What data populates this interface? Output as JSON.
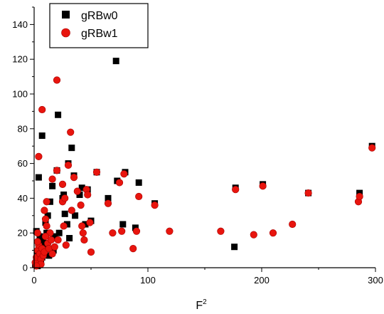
{
  "chart_data": {
    "type": "scatter",
    "title": "",
    "xlabel": "F",
    "xlabel_superscript": "2",
    "ylabel": "",
    "xlim": [
      0,
      300
    ],
    "ylim": [
      0,
      150
    ],
    "xticks": [
      "0",
      "100",
      "200",
      "300"
    ],
    "yticks": [
      "0",
      "20",
      "40",
      "60",
      "80",
      "100",
      "120",
      "140"
    ],
    "grid": false,
    "legend": "top-left",
    "series": [
      {
        "name": "gRBw0",
        "marker": "square",
        "color": "#000000",
        "points": [
          [
            2,
            21
          ],
          [
            4,
            52
          ],
          [
            7,
            76
          ],
          [
            16,
            47
          ],
          [
            20,
            56
          ],
          [
            21,
            88
          ],
          [
            26,
            42
          ],
          [
            30,
            60
          ],
          [
            33,
            69
          ],
          [
            35,
            53
          ],
          [
            42,
            46
          ],
          [
            47,
            45
          ],
          [
            55,
            55
          ],
          [
            65,
            40
          ],
          [
            72,
            119
          ],
          [
            73,
            50
          ],
          [
            80,
            55
          ],
          [
            92,
            49
          ],
          [
            106,
            37
          ],
          [
            177,
            46
          ],
          [
            201,
            48
          ],
          [
            241,
            43
          ],
          [
            286,
            43
          ],
          [
            297,
            70
          ],
          [
            176,
            12
          ],
          [
            89,
            23
          ],
          [
            5,
            10
          ],
          [
            8,
            15
          ],
          [
            10,
            26
          ],
          [
            12,
            30
          ],
          [
            14,
            38
          ],
          [
            18,
            18
          ],
          [
            22,
            20
          ],
          [
            25,
            40
          ],
          [
            27,
            31
          ],
          [
            29,
            25
          ],
          [
            31,
            17
          ],
          [
            36,
            30
          ],
          [
            40,
            42
          ],
          [
            45,
            25
          ],
          [
            50,
            27
          ],
          [
            78,
            25
          ],
          [
            2,
            5
          ],
          [
            3,
            8
          ],
          [
            6,
            3
          ],
          [
            1,
            2
          ],
          [
            9,
            12
          ],
          [
            13,
            7
          ],
          [
            17,
            10
          ],
          [
            11,
            20
          ],
          [
            4,
            14
          ],
          [
            7,
            6
          ],
          [
            3,
            1
          ],
          [
            5,
            18
          ]
        ]
      },
      {
        "name": "gRBw1",
        "marker": "circle",
        "color": "#e8150e",
        "points": [
          [
            4,
            64
          ],
          [
            7,
            91
          ],
          [
            20,
            108
          ],
          [
            32,
            78
          ],
          [
            3,
            20
          ],
          [
            9,
            33
          ],
          [
            10,
            28
          ],
          [
            11,
            38
          ],
          [
            14,
            20
          ],
          [
            16,
            51
          ],
          [
            20,
            56
          ],
          [
            21,
            16
          ],
          [
            25,
            38
          ],
          [
            25,
            48
          ],
          [
            26,
            24
          ],
          [
            27,
            40
          ],
          [
            28,
            13
          ],
          [
            30,
            59
          ],
          [
            33,
            33
          ],
          [
            35,
            52
          ],
          [
            38,
            44
          ],
          [
            41,
            36
          ],
          [
            42,
            24
          ],
          [
            43,
            20
          ],
          [
            44,
            16
          ],
          [
            46,
            45
          ],
          [
            47,
            42
          ],
          [
            49,
            26
          ],
          [
            50,
            9
          ],
          [
            55,
            55
          ],
          [
            65,
            37
          ],
          [
            69,
            20
          ],
          [
            75,
            49
          ],
          [
            77,
            21
          ],
          [
            79,
            54
          ],
          [
            87,
            11
          ],
          [
            90,
            21
          ],
          [
            92,
            41
          ],
          [
            106,
            36
          ],
          [
            119,
            21
          ],
          [
            164,
            21
          ],
          [
            177,
            45
          ],
          [
            193,
            19
          ],
          [
            201,
            47
          ],
          [
            210,
            20
          ],
          [
            227,
            25
          ],
          [
            241,
            43
          ],
          [
            285,
            38
          ],
          [
            286,
            41
          ],
          [
            297,
            69
          ],
          [
            1,
            3
          ],
          [
            2,
            6
          ],
          [
            3,
            10
          ],
          [
            4,
            13
          ],
          [
            5,
            8
          ],
          [
            6,
            5
          ],
          [
            7,
            11
          ],
          [
            8,
            7
          ],
          [
            9,
            9
          ],
          [
            12,
            14
          ],
          [
            13,
            11
          ],
          [
            15,
            16
          ],
          [
            16,
            8
          ],
          [
            18,
            12
          ],
          [
            6,
            2
          ],
          [
            2,
            1
          ],
          [
            3,
            15
          ],
          [
            10,
            18
          ],
          [
            11,
            24
          ]
        ]
      }
    ]
  }
}
